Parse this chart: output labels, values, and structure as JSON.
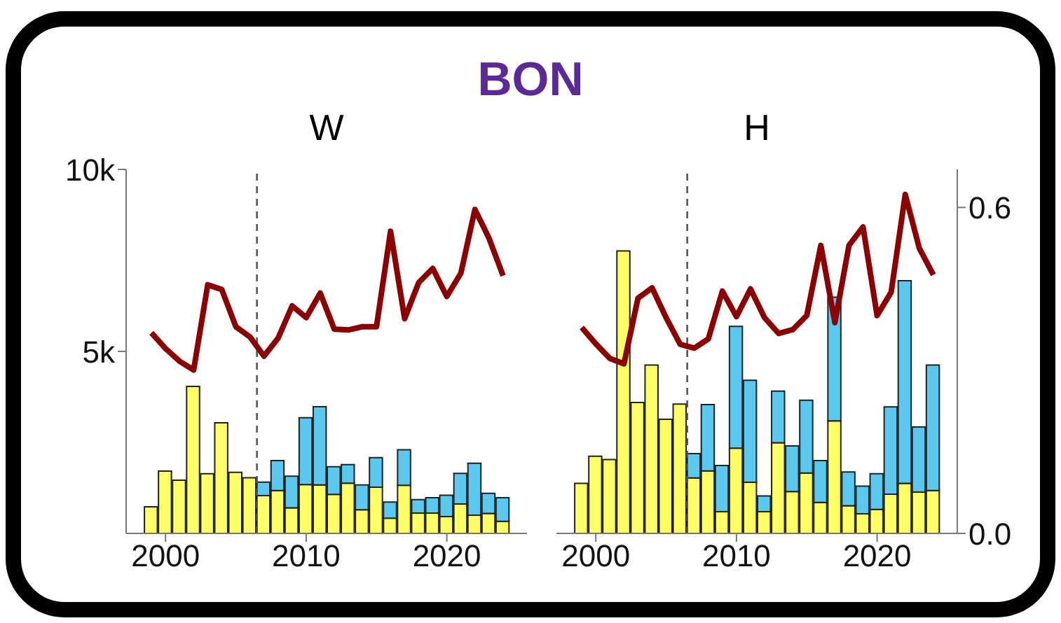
{
  "chart_data": [
    {
      "type": "bar",
      "title": "W",
      "annotations": [
        "BON"
      ],
      "stacked": true,
      "legend": false,
      "x": [
        1999,
        2000,
        2001,
        2002,
        2003,
        2004,
        2005,
        2006,
        2007,
        2008,
        2009,
        2010,
        2011,
        2012,
        2013,
        2014,
        2015,
        2016,
        2017,
        2018,
        2019,
        2020,
        2021,
        2022,
        2023,
        2024
      ],
      "series": [
        {
          "color": "#ffff66",
          "values": [
            730,
            1710,
            1460,
            4040,
            1640,
            3040,
            1680,
            1530,
            1040,
            1180,
            700,
            1340,
            1330,
            1070,
            1380,
            650,
            1270,
            420,
            1320,
            560,
            560,
            460,
            810,
            500,
            550,
            330
          ]
        },
        {
          "color": "#5bc8f0",
          "values": [
            null,
            null,
            null,
            null,
            null,
            null,
            null,
            null,
            370,
            820,
            870,
            1840,
            2150,
            760,
            510,
            680,
            810,
            440,
            980,
            370,
            420,
            590,
            840,
            1430,
            550,
            650
          ]
        },
        {
          "type": "line",
          "color": "#8b0000",
          "values": [
            5510,
            5080,
            4730,
            4490,
            6830,
            6700,
            5680,
            5400,
            4870,
            5360,
            6250,
            5930,
            6600,
            5610,
            5590,
            5680,
            5680,
            8300,
            5900,
            6890,
            7280,
            6510,
            7150,
            8900,
            8110,
            7080
          ]
        }
      ],
      "xlim": [
        1997.2,
        2025.7
      ],
      "xticks": [
        2000,
        2010,
        2020
      ],
      "ylim": [
        0,
        10000
      ],
      "yticks": [
        {
          "value": 5000,
          "label": "5k"
        },
        {
          "value": 10000,
          "label": "10k"
        }
      ],
      "ref_lines": [
        {
          "axis": "x",
          "value": 2006.5,
          "color": "#555555",
          "line_style": "dashed"
        }
      ]
    },
    {
      "type": "bar",
      "title": "H",
      "stacked": true,
      "legend": false,
      "x": [
        1999,
        2000,
        2001,
        2002,
        2003,
        2004,
        2005,
        2006,
        2007,
        2008,
        2009,
        2010,
        2011,
        2012,
        2013,
        2014,
        2015,
        2016,
        2017,
        2018,
        2019,
        2020,
        2021,
        2022,
        2023,
        2024
      ],
      "series": [
        {
          "color": "#ffff66",
          "values": [
            0.092,
            0.142,
            0.136,
            0.52,
            0.241,
            0.31,
            0.21,
            0.238,
            0.102,
            0.115,
            0.04,
            0.157,
            0.094,
            0.04,
            0.167,
            0.077,
            0.111,
            0.057,
            0.207,
            0.051,
            0.036,
            0.044,
            0.072,
            0.092,
            0.076,
            0.079
          ]
        },
        {
          "color": "#5bc8f0",
          "values": [
            null,
            null,
            null,
            null,
            null,
            null,
            null,
            null,
            0.045,
            0.122,
            0.085,
            0.224,
            0.188,
            0.029,
            0.095,
            0.084,
            0.134,
            0.077,
            0.228,
            0.062,
            0.051,
            0.066,
            0.161,
            0.373,
            0.12,
            0.231
          ]
        },
        {
          "type": "line",
          "color": "#8b0000",
          "values": [
            0.379,
            0.349,
            0.322,
            0.312,
            0.433,
            0.452,
            0.397,
            0.348,
            0.341,
            0.358,
            0.446,
            0.399,
            0.45,
            0.397,
            0.368,
            0.375,
            0.401,
            0.53,
            0.388,
            0.53,
            0.564,
            0.401,
            0.444,
            0.624,
            0.525,
            0.476
          ]
        }
      ],
      "xlim": [
        1997.2,
        2025.7
      ],
      "xticks": [
        2000,
        2010,
        2020
      ],
      "ylim": [
        0,
        0.67
      ],
      "yticks": [
        {
          "value": 0,
          "label": "0.0"
        },
        {
          "value": 0.6,
          "label": "0.6"
        }
      ],
      "ref_lines": [
        {
          "axis": "x",
          "value": 2006.5,
          "color": "#555555",
          "line_style": "dashed"
        }
      ]
    }
  ]
}
